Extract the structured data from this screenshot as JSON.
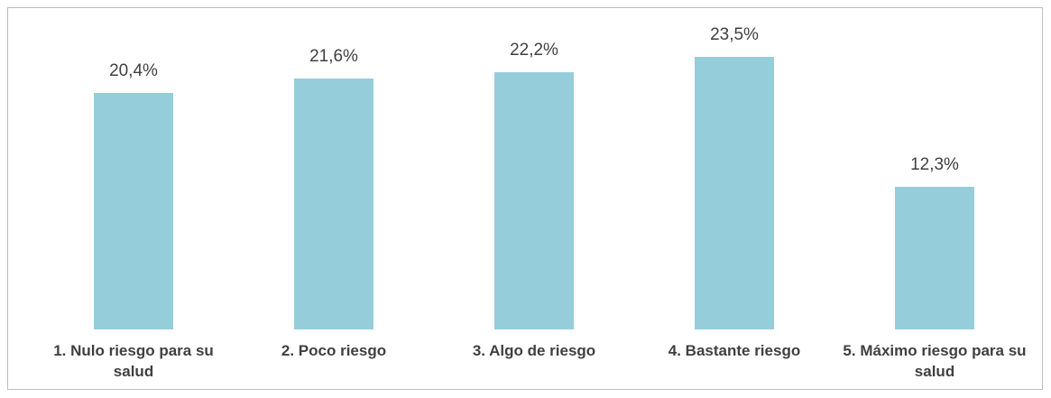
{
  "chart_data": {
    "type": "bar",
    "categories": [
      "1. Nulo riesgo para su salud",
      "2. Poco riesgo",
      "3. Algo de riesgo",
      "4. Bastante riesgo",
      "5. Máximo riesgo para su salud"
    ],
    "values": [
      20.4,
      21.6,
      22.2,
      23.5,
      12.3
    ],
    "value_labels": [
      "20,4%",
      "21,6%",
      "22,2%",
      "23,5%",
      "12,3%"
    ],
    "color": "#96cddb"
  }
}
